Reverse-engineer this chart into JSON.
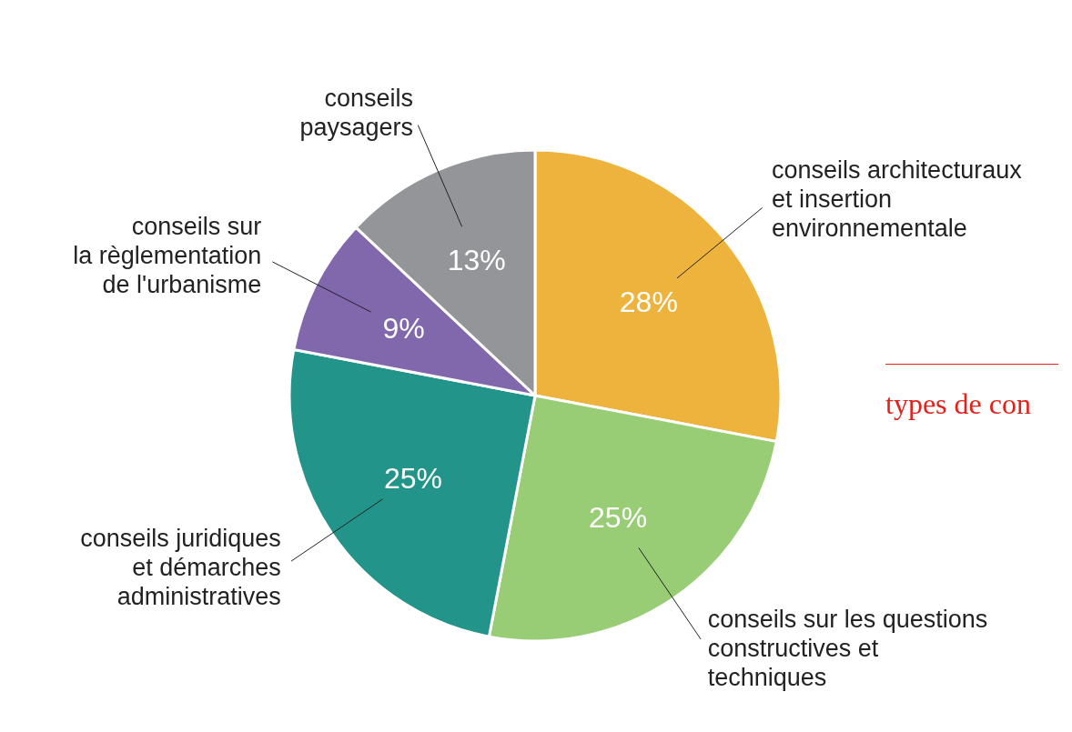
{
  "chart_data": {
    "type": "pie",
    "categories": [
      "conseils architecturaux\net insertion\nenvironnementale",
      "conseils sur les questions\nconstructives et\ntechniques",
      "conseils juridiques\net démarches\nadministratives",
      "conseils sur\nla règlementation\nde l'urbanisme",
      "conseils\npaysagers"
    ],
    "values": [
      28,
      25,
      25,
      9,
      13
    ],
    "value_labels": [
      "28%",
      "25%",
      "25%",
      "9%",
      "13%"
    ],
    "colors": [
      "#edb33d",
      "#98cd76",
      "#22948a",
      "#8168ad",
      "#939598"
    ],
    "annotations": [
      "types de con"
    ]
  }
}
